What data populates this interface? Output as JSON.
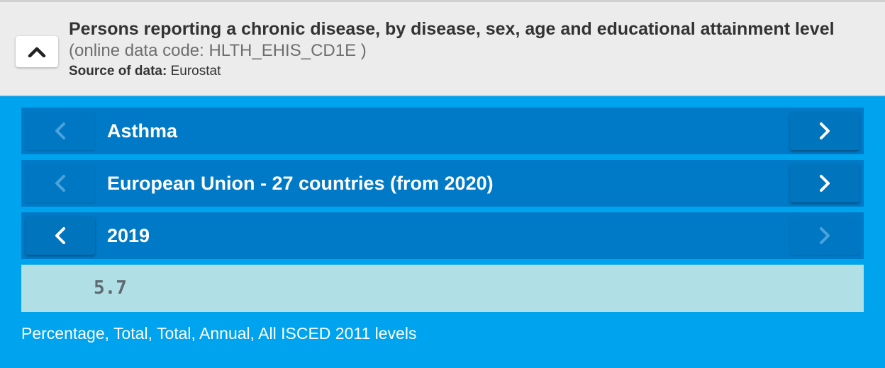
{
  "header": {
    "title": "Persons reporting a chronic disease, by disease, sex, age and educational attainment level",
    "code_text": "(online data code: HLTH_EHIS_CD1E )",
    "source_label": "Source of data:",
    "source_value": "Eurostat",
    "collapse_icon": "chevron-up-icon"
  },
  "selectors": [
    {
      "label": "Asthma",
      "prev_enabled": false,
      "next_enabled": true
    },
    {
      "label": "European Union - 27 countries (from 2020)",
      "prev_enabled": false,
      "next_enabled": true
    },
    {
      "label": "2019",
      "prev_enabled": true,
      "next_enabled": false
    }
  ],
  "value": "5.7",
  "footnote": "Percentage, Total, Total, Annual, All ISCED 2011 levels",
  "colors": {
    "background": "#00a3ed",
    "row": "#0079c6",
    "value_box": "#b0e0e6",
    "header": "#ececec"
  }
}
